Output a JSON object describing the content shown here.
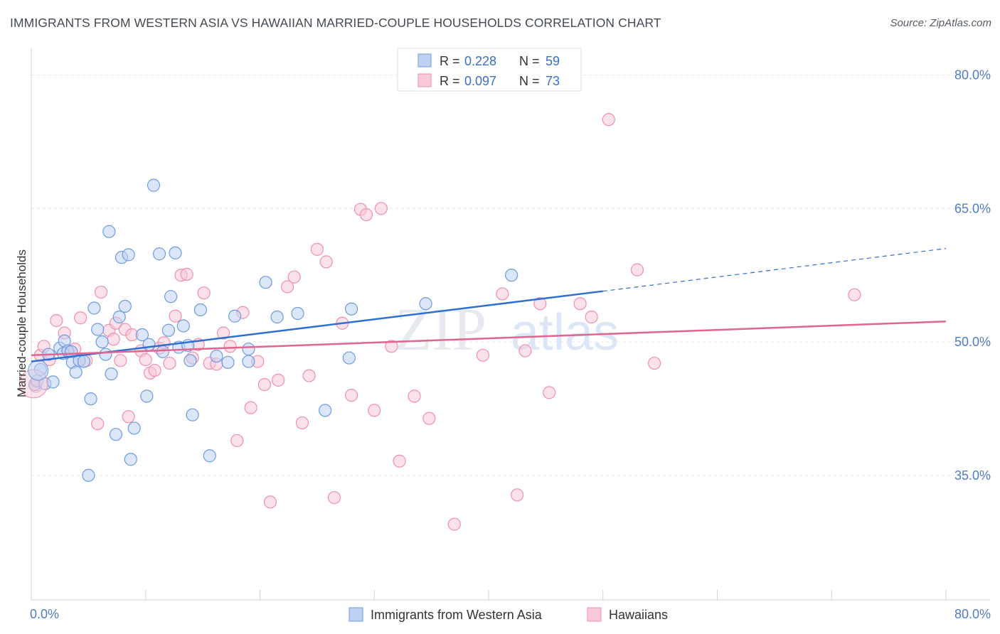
{
  "title": "IMMIGRANTS FROM WESTERN ASIA VS HAWAIIAN MARRIED-COUPLE HOUSEHOLDS CORRELATION CHART",
  "source": "Source: ZipAtlas.com",
  "watermark": {
    "zip": "ZIP",
    "atlas": "atlas"
  },
  "chart_data": {
    "type": "scatter",
    "ylabel": "Married-couple Households",
    "xlim": [
      0,
      80
    ],
    "ylim": [
      21,
      83
    ],
    "x_tick_labels": [
      {
        "value": 0,
        "label": "0.0%"
      },
      {
        "value": 80,
        "label": "80.0%"
      }
    ],
    "y_tick_labels": [
      {
        "value": 80,
        "label": "80.0%"
      },
      {
        "value": 65,
        "label": "65.0%"
      },
      {
        "value": 50,
        "label": "50.0%"
      },
      {
        "value": 35,
        "label": "35.0%"
      }
    ],
    "grid": true,
    "legend_top": [
      {
        "r_label": "R =",
        "r_value": "0.228",
        "n_label": "N =",
        "n_value": "59",
        "color": "#6d9be0"
      },
      {
        "r_label": "R =",
        "r_value": "0.097",
        "n_label": "N =",
        "n_value": "73",
        "color": "#ef8fae"
      }
    ],
    "series": [
      {
        "name": "Immigrants from Western Asia",
        "color": "#6d9be0",
        "fill": "#bdd2f2",
        "trend": {
          "x0": 0,
          "y0": 47.8,
          "x1": 50,
          "y1": 55.7,
          "dash_to_x": 80,
          "dash_to_y": 60.5,
          "color": "#2f6fd0"
        },
        "points": [
          [
            0.3,
            45.2
          ],
          [
            0.5,
            45.6
          ],
          [
            0.8,
            46.9
          ],
          [
            1.2,
            45.3
          ],
          [
            1.5,
            48.6
          ],
          [
            1.9,
            45.5
          ],
          [
            2.5,
            49.3
          ],
          [
            2.8,
            48.7
          ],
          [
            2.9,
            50.1
          ],
          [
            3.2,
            49.0
          ],
          [
            3.5,
            48.9
          ],
          [
            3.6,
            47.7
          ],
          [
            3.9,
            46.6
          ],
          [
            4.2,
            47.9
          ],
          [
            4.6,
            47.8
          ],
          [
            5.0,
            35.0
          ],
          [
            5.2,
            43.6
          ],
          [
            5.5,
            53.8
          ],
          [
            5.8,
            51.4
          ],
          [
            6.2,
            50.0
          ],
          [
            6.5,
            48.6
          ],
          [
            6.8,
            62.4
          ],
          [
            7.0,
            46.4
          ],
          [
            7.4,
            39.6
          ],
          [
            7.7,
            52.8
          ],
          [
            7.9,
            59.5
          ],
          [
            8.2,
            54.0
          ],
          [
            8.5,
            59.8
          ],
          [
            8.7,
            36.8
          ],
          [
            9.0,
            40.3
          ],
          [
            9.7,
            50.8
          ],
          [
            10.1,
            43.9
          ],
          [
            10.3,
            49.7
          ],
          [
            10.7,
            67.6
          ],
          [
            11.2,
            59.9
          ],
          [
            11.5,
            48.9
          ],
          [
            12.0,
            51.3
          ],
          [
            12.2,
            55.1
          ],
          [
            12.6,
            60.0
          ],
          [
            12.9,
            49.4
          ],
          [
            13.3,
            51.8
          ],
          [
            13.7,
            49.6
          ],
          [
            13.9,
            47.9
          ],
          [
            14.1,
            41.8
          ],
          [
            14.8,
            53.6
          ],
          [
            15.6,
            37.2
          ],
          [
            16.2,
            48.4
          ],
          [
            17.2,
            47.7
          ],
          [
            17.8,
            52.9
          ],
          [
            19.0,
            47.8
          ],
          [
            19.0,
            49.2
          ],
          [
            20.5,
            56.7
          ],
          [
            21.5,
            52.8
          ],
          [
            23.3,
            53.2
          ],
          [
            25.7,
            42.3
          ],
          [
            27.8,
            48.2
          ],
          [
            28.0,
            53.7
          ],
          [
            34.5,
            54.3
          ],
          [
            42.0,
            57.5
          ]
        ]
      },
      {
        "name": "Hawaiians",
        "color": "#ef8fae",
        "fill": "#f8c9d8",
        "trend": {
          "x0": 0,
          "y0": 48.5,
          "x1": 80,
          "y1": 52.3,
          "color": "#e06690"
        },
        "points": [
          [
            0.4,
            45.0
          ],
          [
            0.8,
            48.5
          ],
          [
            1.1,
            49.5
          ],
          [
            1.6,
            48.0
          ],
          [
            2.2,
            52.4
          ],
          [
            2.9,
            51.0
          ],
          [
            3.2,
            48.9
          ],
          [
            3.8,
            49.2
          ],
          [
            4.3,
            52.7
          ],
          [
            4.8,
            47.9
          ],
          [
            5.8,
            40.8
          ],
          [
            6.1,
            55.6
          ],
          [
            6.8,
            51.3
          ],
          [
            7.2,
            50.3
          ],
          [
            7.4,
            52.1
          ],
          [
            7.8,
            47.9
          ],
          [
            8.2,
            51.4
          ],
          [
            8.5,
            41.6
          ],
          [
            8.8,
            50.8
          ],
          [
            9.6,
            49.0
          ],
          [
            10.0,
            48.0
          ],
          [
            10.4,
            46.5
          ],
          [
            10.8,
            46.8
          ],
          [
            11.2,
            49.3
          ],
          [
            11.6,
            49.9
          ],
          [
            12.1,
            47.6
          ],
          [
            12.6,
            52.9
          ],
          [
            13.1,
            57.5
          ],
          [
            13.6,
            57.6
          ],
          [
            14.1,
            48.2
          ],
          [
            14.6,
            49.7
          ],
          [
            15.1,
            55.5
          ],
          [
            15.6,
            47.6
          ],
          [
            16.2,
            47.5
          ],
          [
            16.8,
            51.0
          ],
          [
            17.4,
            49.5
          ],
          [
            18.0,
            38.9
          ],
          [
            18.5,
            53.3
          ],
          [
            19.2,
            42.6
          ],
          [
            19.8,
            47.8
          ],
          [
            20.4,
            45.2
          ],
          [
            20.9,
            32.0
          ],
          [
            21.6,
            45.7
          ],
          [
            22.4,
            56.2
          ],
          [
            23.0,
            57.3
          ],
          [
            23.7,
            40.9
          ],
          [
            24.3,
            46.2
          ],
          [
            25.0,
            60.4
          ],
          [
            25.8,
            59.0
          ],
          [
            26.5,
            32.5
          ],
          [
            27.2,
            52.1
          ],
          [
            28.0,
            44.0
          ],
          [
            28.8,
            64.9
          ],
          [
            29.3,
            64.3
          ],
          [
            30.0,
            42.3
          ],
          [
            30.6,
            65.0
          ],
          [
            31.5,
            49.5
          ],
          [
            32.2,
            36.6
          ],
          [
            33.5,
            43.9
          ],
          [
            34.8,
            41.4
          ],
          [
            37.0,
            29.5
          ],
          [
            39.5,
            48.5
          ],
          [
            41.2,
            55.4
          ],
          [
            42.5,
            32.8
          ],
          [
            43.2,
            49.0
          ],
          [
            44.5,
            54.3
          ],
          [
            45.3,
            44.3
          ],
          [
            48.0,
            54.3
          ],
          [
            49.0,
            52.8
          ],
          [
            50.5,
            75.0
          ],
          [
            53.0,
            58.1
          ],
          [
            54.5,
            47.6
          ],
          [
            72.0,
            55.3
          ]
        ]
      }
    ]
  }
}
